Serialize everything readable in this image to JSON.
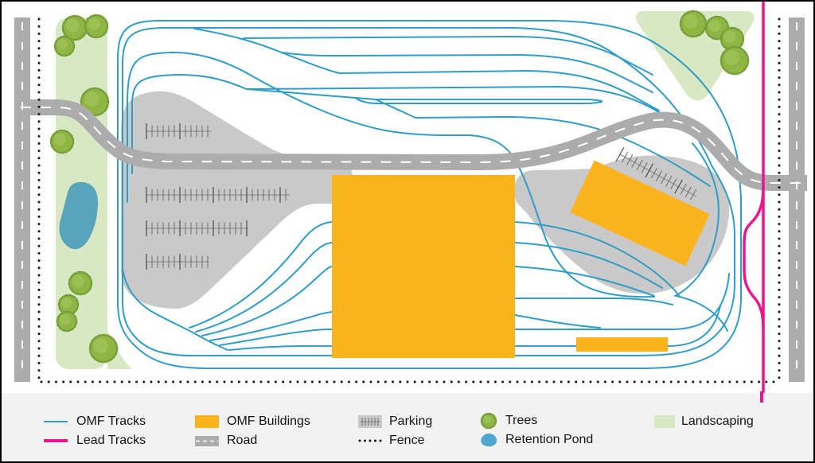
{
  "legend": {
    "items": [
      {
        "id": "omf-tracks",
        "label": "OMF Tracks"
      },
      {
        "id": "lead-tracks",
        "label": "Lead Tracks"
      },
      {
        "id": "omf-buildings",
        "label": "OMF Buildings"
      },
      {
        "id": "road",
        "label": "Road"
      },
      {
        "id": "parking",
        "label": "Parking"
      },
      {
        "id": "fence",
        "label": "Fence"
      },
      {
        "id": "trees",
        "label": "Trees"
      },
      {
        "id": "retention-pond",
        "label": "Retention Pond"
      },
      {
        "id": "landscaping",
        "label": "Landscaping"
      }
    ]
  },
  "colors": {
    "omf_track_blue": "#2F9DC5",
    "lead_track_pink": "#EC168C",
    "building_orange": "#FBB31E",
    "road_gray": "#ACACAC",
    "road_dash_white": "#FFFFFF",
    "pavement_gray": "#C9C9C9",
    "landscaping_green": "#D8E8C4",
    "tree_green": "#8FB545",
    "tree_outline": "#75A037",
    "pond_blue": "#58A5BB",
    "legend_pond_blue": "#4FA6CE",
    "fence_black": "#141414",
    "legend_bg": "#F2F2F2",
    "map_bg": "#FFFFFF"
  }
}
